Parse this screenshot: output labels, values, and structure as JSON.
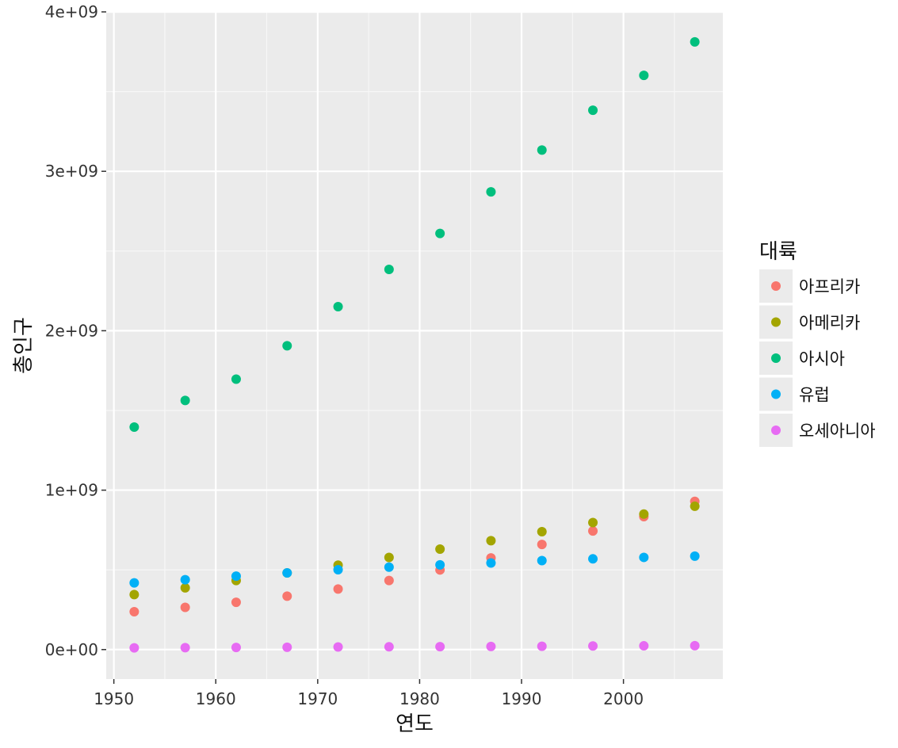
{
  "chart_data": {
    "type": "scatter",
    "xlabel": "연도",
    "ylabel": "총인구",
    "xlim": [
      1949.25,
      2009.75
    ],
    "ylim": [
      -185000000,
      4000000000
    ],
    "xticks": [
      1950,
      1960,
      1970,
      1980,
      1990,
      2000
    ],
    "xtick_labels": [
      "1950",
      "1960",
      "1970",
      "1980",
      "1990",
      "2000"
    ],
    "yticks": [
      0,
      1000000000,
      2000000000,
      3000000000,
      4000000000
    ],
    "ytick_labels": [
      "0e+00",
      "1e+09",
      "2e+09",
      "3e+09",
      "4e+09"
    ],
    "grid": true,
    "legend_title": "대륙",
    "legend_position": "right",
    "x": [
      1952,
      1957,
      1962,
      1967,
      1972,
      1977,
      1982,
      1987,
      1992,
      1997,
      2002,
      2007
    ],
    "series": [
      {
        "name": "아프리카",
        "color": "#F8766D",
        "values": [
          237640501,
          264837738,
          296516865,
          335289489,
          379879541,
          433061021,
          499348587,
          574834110,
          659081517,
          743832984,
          833723916,
          929539692
        ]
      },
      {
        "name": "아메리카",
        "color": "#A3A500",
        "values": [
          345152446,
          386953916,
          433270254,
          480746623,
          529384210,
          578067699,
          630290920,
          682753971,
          739274104,
          796900410,
          849772762,
          898871184
        ]
      },
      {
        "name": "아시아",
        "color": "#00BF7D",
        "values": [
          1395357352,
          1562780599,
          1696357182,
          1905662900,
          2150972248,
          2384513556,
          2610135582,
          2871220762,
          3133292191,
          3383285500,
          3601802203,
          3811953827
        ]
      },
      {
        "name": "유럽",
        "color": "#00B0F6",
        "values": [
          418120846,
          437890351,
          460355155,
          481178958,
          500635059,
          517164531,
          531266901,
          543094160,
          558142797,
          568944148,
          578223869,
          586098529
        ]
      },
      {
        "name": "오세아니아",
        "color": "#E76BF3",
        "values": [
          10686006,
          11941976,
          13283518,
          14600414,
          16106100,
          17239000,
          18394850,
          19574415,
          20919651,
          22241430,
          23454829,
          24549947
        ]
      }
    ]
  }
}
